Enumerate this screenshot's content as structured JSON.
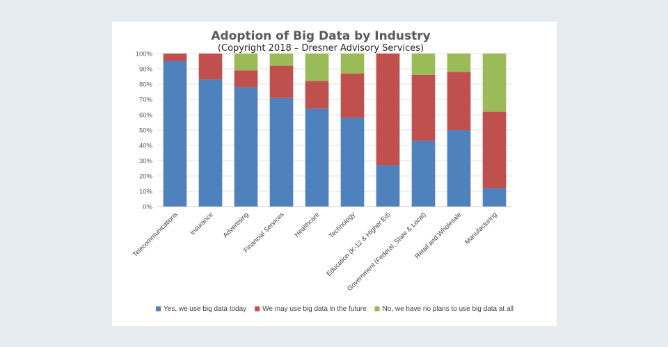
{
  "chart_data": {
    "type": "bar",
    "stacked": true,
    "percent": true,
    "title": "Adoption of Big Data by Industry",
    "subtitle": "(Copyright 2018 – Dresner Advisory Services)",
    "xlabel": "",
    "ylabel": "",
    "ylim": [
      0,
      100
    ],
    "y_ticks": [
      "0%",
      "10%",
      "20%",
      "30%",
      "40%",
      "50%",
      "60%",
      "70%",
      "80%",
      "90%",
      "100%"
    ],
    "grid": true,
    "legend_position": "bottom",
    "categories": [
      "Telecommunications",
      "Insurance",
      "Advertising",
      "Financial Services",
      "Healthcare",
      "Technology",
      "Education (K-12 & Higher Ed)",
      "Government (Federal, State & Local)",
      "Retail and Wholesale",
      "Manufacturing"
    ],
    "series": [
      {
        "name": "Yes, we use big data today",
        "color": "#4f81bd",
        "values": [
          95,
          83,
          78,
          71,
          64,
          58,
          27,
          43,
          50,
          12
        ]
      },
      {
        "name": "We may use big data in the future",
        "color": "#c0504d",
        "values": [
          5,
          17,
          11,
          21,
          18,
          29,
          73,
          43,
          38,
          50
        ]
      },
      {
        "name": "No, we have no plans to use big data at all",
        "color": "#9bbb59",
        "values": [
          0,
          0,
          11,
          8,
          18,
          13,
          0,
          14,
          12,
          38
        ]
      }
    ]
  }
}
